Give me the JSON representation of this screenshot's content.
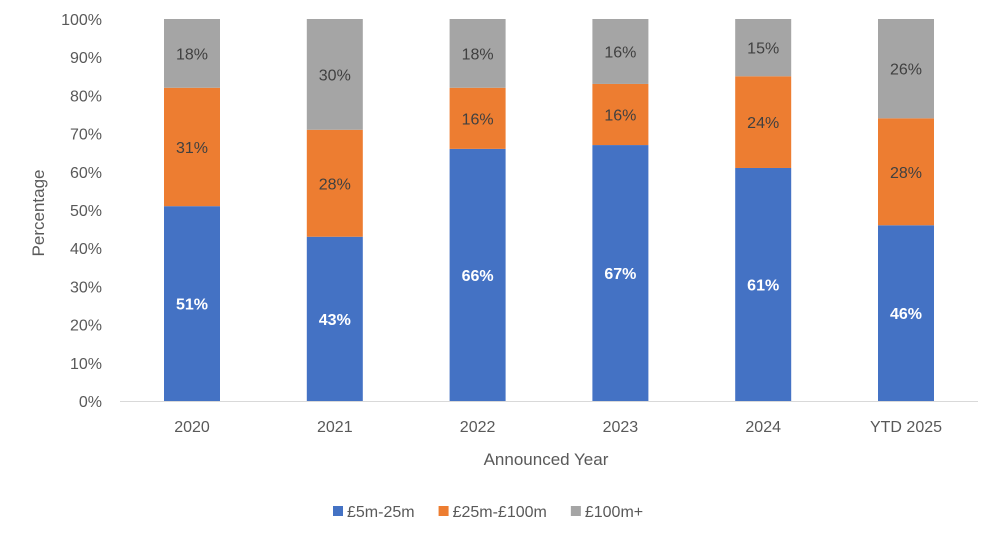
{
  "chart_data": {
    "type": "bar",
    "stacked": "percent",
    "title": "",
    "xlabel": "Announced Year",
    "ylabel": "Percentage",
    "ylim": [
      0,
      100
    ],
    "yticks": [
      "0%",
      "10%",
      "20%",
      "30%",
      "40%",
      "50%",
      "60%",
      "70%",
      "80%",
      "90%",
      "100%"
    ],
    "grid": false,
    "legend_position": "bottom",
    "categories": [
      "2020",
      "2021",
      "2022",
      "2023",
      "2024",
      "YTD 2025"
    ],
    "series": [
      {
        "name": "£5m-25m",
        "color": "#4472C4",
        "label_color": "#ffffff",
        "values": [
          51,
          43,
          66,
          67,
          61,
          46
        ]
      },
      {
        "name": "£25m-£100m",
        "color": "#ED7D31",
        "label_color": "#404040",
        "values": [
          31,
          28,
          16,
          16,
          24,
          28
        ]
      },
      {
        "name": "£100m+",
        "color": "#A5A5A5",
        "label_color": "#404040",
        "values": [
          18,
          30,
          18,
          16,
          15,
          26
        ]
      }
    ]
  }
}
